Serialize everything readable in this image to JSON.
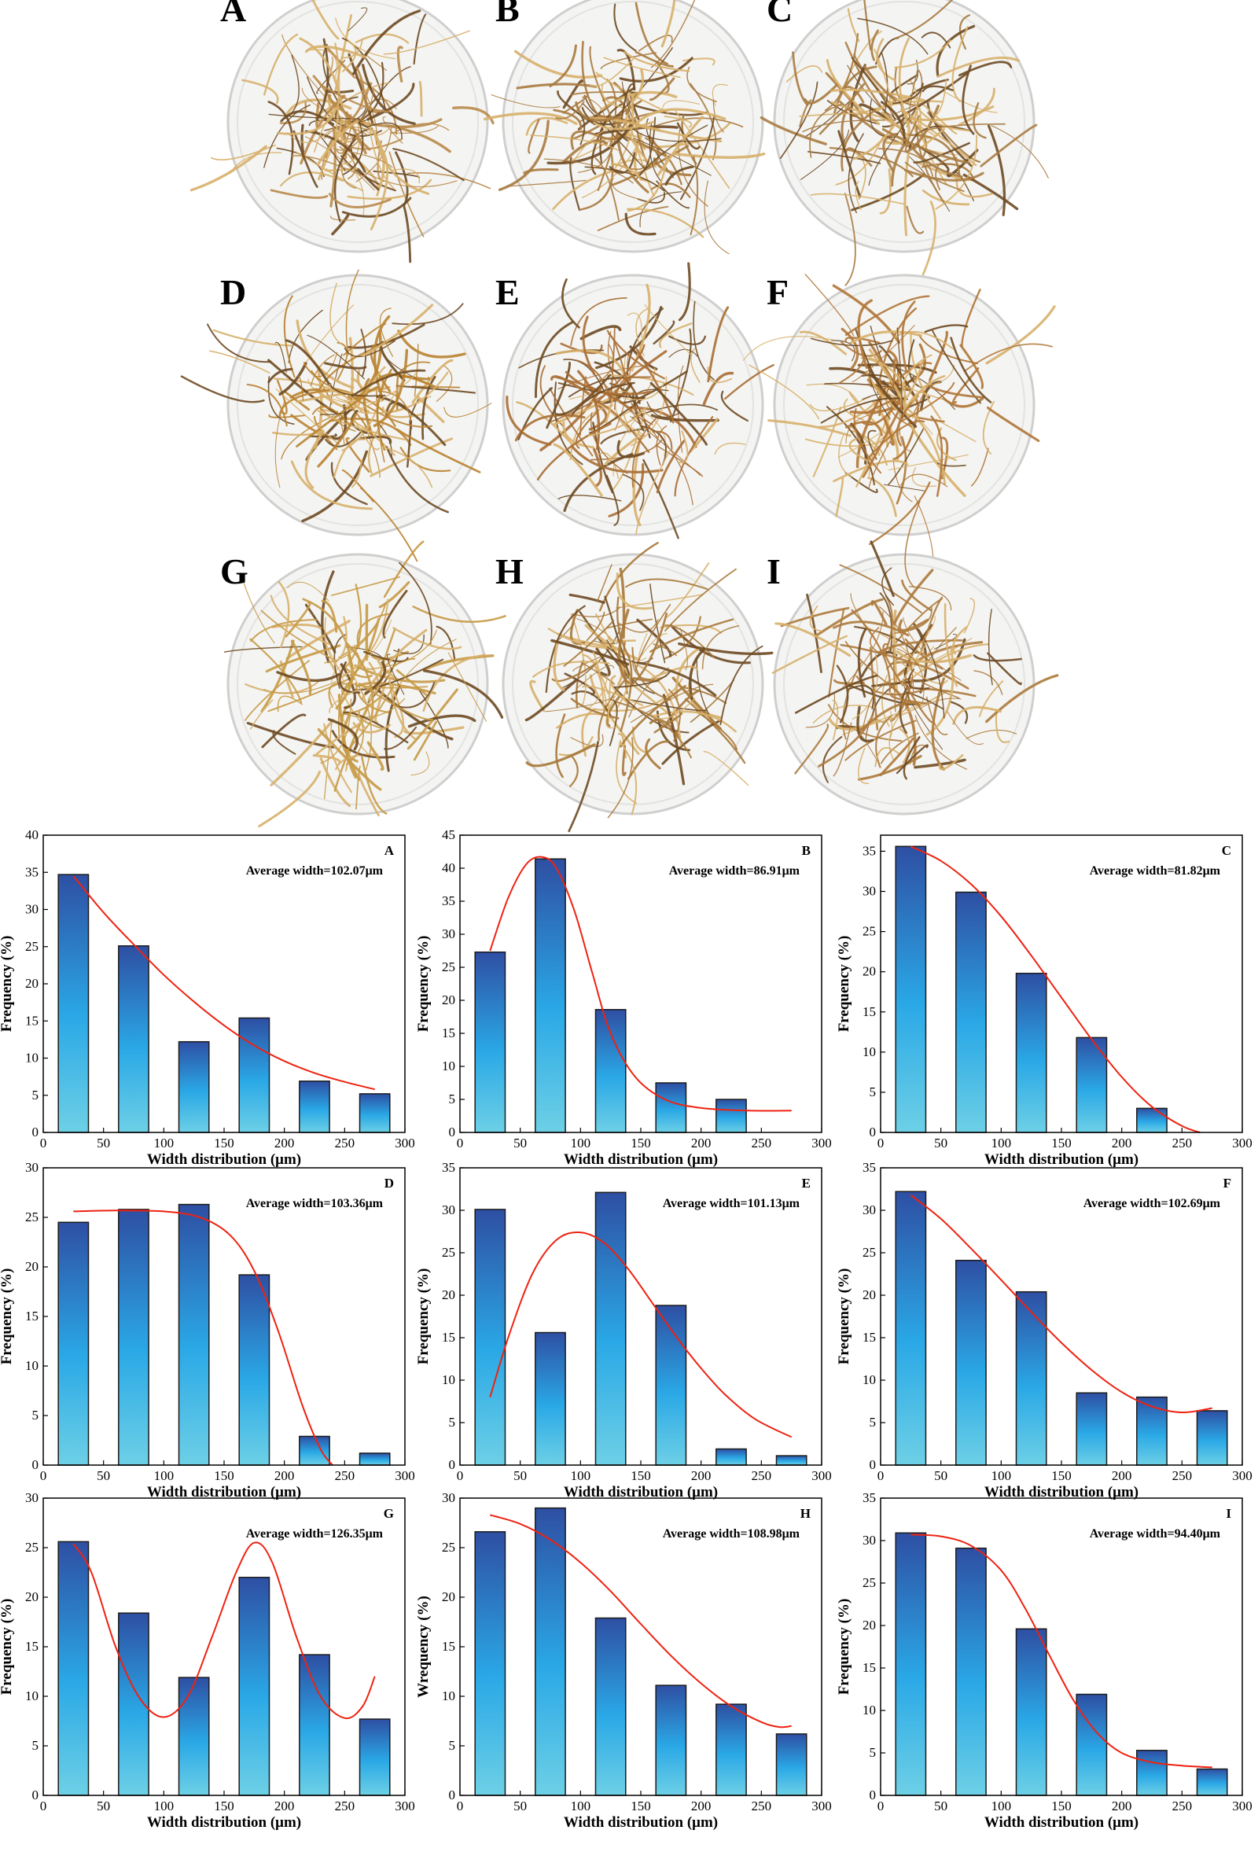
{
  "photos": [
    {
      "label": "A",
      "fiber_color": "#b9894a"
    },
    {
      "label": "B",
      "fiber_color": "#a87a3f"
    },
    {
      "label": "C",
      "fiber_color": "#a97c43"
    },
    {
      "label": "D",
      "fiber_color": "#b98331"
    },
    {
      "label": "E",
      "fiber_color": "#a96e34"
    },
    {
      "label": "F",
      "fiber_color": "#b07636"
    },
    {
      "label": "G",
      "fiber_color": "#c69a46"
    },
    {
      "label": "H",
      "fiber_color": "#a77838"
    },
    {
      "label": "I",
      "fiber_color": "#ad7a3c"
    }
  ],
  "colors": {
    "bar_top": "#2e4fa3",
    "bar_mid": "#2aa8e6",
    "bar_bottom": "#6dd0e6",
    "bar_stroke": "#1b1b1b",
    "fit_line": "#ee2211",
    "dish_rim": "#cfcfcf"
  },
  "chart_data": [
    {
      "panel": "A",
      "type": "bar",
      "annotation": "Average width=102.07μm",
      "x": [
        25,
        75,
        125,
        175,
        225,
        275
      ],
      "values": [
        34.7,
        25.1,
        12.2,
        15.4,
        6.9,
        5.2
      ],
      "fit": [
        [
          25,
          34.5
        ],
        [
          50,
          29.6
        ],
        [
          75,
          25.3
        ],
        [
          100,
          21.2
        ],
        [
          125,
          17.6
        ],
        [
          150,
          14.4
        ],
        [
          175,
          11.7
        ],
        [
          200,
          9.6
        ],
        [
          225,
          8.0
        ],
        [
          250,
          6.8
        ],
        [
          275,
          5.8
        ]
      ],
      "xlabel": "Width distribution (μm)",
      "ylabel": "Frequency (%)",
      "xlim": [
        0,
        300
      ],
      "ylim": [
        0,
        40
      ],
      "xticks": [
        0,
        50,
        100,
        150,
        200,
        250,
        300
      ],
      "yticks": [
        0,
        5,
        10,
        15,
        20,
        25,
        30,
        35,
        40
      ]
    },
    {
      "panel": "B",
      "type": "bar",
      "annotation": "Average width=86.91μm",
      "x": [
        25,
        75,
        125,
        175,
        225
      ],
      "values": [
        27.3,
        41.4,
        18.6,
        7.5,
        5.0
      ],
      "fit": [
        [
          25,
          27.5
        ],
        [
          40,
          35.5
        ],
        [
          55,
          40.6
        ],
        [
          68,
          41.7
        ],
        [
          80,
          40.0
        ],
        [
          95,
          33.5
        ],
        [
          110,
          24.0
        ],
        [
          125,
          15.0
        ],
        [
          145,
          8.5
        ],
        [
          170,
          5.0
        ],
        [
          200,
          3.7
        ],
        [
          240,
          3.3
        ],
        [
          275,
          3.3
        ]
      ],
      "xlabel": "Width distribution (μm)",
      "ylabel": "Frequency (%)",
      "xlim": [
        0,
        300
      ],
      "ylim": [
        0,
        45
      ],
      "xticks": [
        0,
        50,
        100,
        150,
        200,
        250,
        300
      ],
      "yticks": [
        0,
        5,
        10,
        15,
        20,
        25,
        30,
        35,
        40,
        45
      ]
    },
    {
      "panel": "C",
      "type": "bar",
      "annotation": "Average width=81.82μm",
      "x": [
        25,
        75,
        125,
        175,
        225
      ],
      "values": [
        35.6,
        29.9,
        19.8,
        11.8,
        3.0
      ],
      "fit": [
        [
          25,
          35.6
        ],
        [
          50,
          33.8
        ],
        [
          75,
          30.9
        ],
        [
          100,
          26.9
        ],
        [
          125,
          22.0
        ],
        [
          150,
          16.8
        ],
        [
          175,
          11.6
        ],
        [
          200,
          6.9
        ],
        [
          225,
          3.2
        ],
        [
          250,
          0.8
        ],
        [
          265,
          0.0
        ]
      ],
      "xlabel": "Width distribution (μm)",
      "ylabel": "Frequency (%)",
      "xlim": [
        0,
        300
      ],
      "ylim": [
        0,
        37
      ],
      "xticks": [
        0,
        50,
        100,
        150,
        200,
        250,
        300
      ],
      "yticks": [
        0,
        5,
        10,
        15,
        20,
        25,
        30,
        35
      ]
    },
    {
      "panel": "D",
      "type": "bar",
      "annotation": "Average width=103.36μm",
      "x": [
        25,
        75,
        125,
        175,
        225,
        275
      ],
      "values": [
        24.5,
        25.8,
        26.3,
        19.2,
        2.9,
        1.2
      ],
      "fit": [
        [
          25,
          25.6
        ],
        [
          60,
          25.7
        ],
        [
          100,
          25.6
        ],
        [
          130,
          25.0
        ],
        [
          155,
          23.2
        ],
        [
          175,
          19.6
        ],
        [
          195,
          13.5
        ],
        [
          215,
          6.0
        ],
        [
          230,
          1.6
        ],
        [
          240,
          0.0
        ]
      ],
      "xlabel": "Width distribution (μm)",
      "ylabel": "Frequency (%)",
      "xlim": [
        0,
        300
      ],
      "ylim": [
        0,
        30
      ],
      "xticks": [
        0,
        50,
        100,
        150,
        200,
        250,
        300
      ],
      "yticks": [
        0,
        5,
        10,
        15,
        20,
        25,
        30
      ]
    },
    {
      "panel": "E",
      "type": "bar",
      "annotation": "Average width=101.13μm",
      "x": [
        25,
        75,
        125,
        175,
        225,
        275
      ],
      "values": [
        30.1,
        15.6,
        32.1,
        18.8,
        1.9,
        1.1
      ],
      "fit": [
        [
          25,
          8.0
        ],
        [
          40,
          15.0
        ],
        [
          60,
          22.5
        ],
        [
          80,
          26.5
        ],
        [
          100,
          27.4
        ],
        [
          120,
          26.1
        ],
        [
          140,
          23.0
        ],
        [
          160,
          19.0
        ],
        [
          180,
          15.0
        ],
        [
          200,
          11.4
        ],
        [
          220,
          8.3
        ],
        [
          245,
          5.4
        ],
        [
          275,
          3.3
        ]
      ],
      "xlabel": "Width distribution (μm)",
      "ylabel": "Frequency (%)",
      "xlim": [
        0,
        300
      ],
      "ylim": [
        0,
        35
      ],
      "xticks": [
        0,
        50,
        100,
        150,
        200,
        250,
        300
      ],
      "yticks": [
        0,
        5,
        10,
        15,
        20,
        25,
        30,
        35
      ]
    },
    {
      "panel": "F",
      "type": "bar",
      "annotation": "Average width=102.69μm",
      "x": [
        25,
        75,
        125,
        175,
        225,
        275
      ],
      "values": [
        32.2,
        24.1,
        20.4,
        8.5,
        8.0,
        6.4
      ],
      "fit": [
        [
          25,
          31.8
        ],
        [
          50,
          29.0
        ],
        [
          75,
          25.5
        ],
        [
          100,
          21.8
        ],
        [
          125,
          18.0
        ],
        [
          150,
          14.4
        ],
        [
          175,
          11.2
        ],
        [
          200,
          8.6
        ],
        [
          225,
          6.9
        ],
        [
          250,
          6.2
        ],
        [
          275,
          6.7
        ]
      ],
      "xlabel": "Width distribution (μm)",
      "ylabel": "Frequency (%)",
      "xlim": [
        0,
        300
      ],
      "ylim": [
        0,
        35
      ],
      "xticks": [
        0,
        50,
        100,
        150,
        200,
        250,
        300
      ],
      "yticks": [
        0,
        5,
        10,
        15,
        20,
        25,
        30,
        35
      ]
    },
    {
      "panel": "G",
      "type": "bar",
      "annotation": "Average width=126.35μm",
      "x": [
        25,
        75,
        125,
        175,
        225,
        275
      ],
      "values": [
        25.6,
        18.4,
        11.9,
        22.0,
        14.2,
        7.7
      ],
      "fit": [
        [
          25,
          25.4
        ],
        [
          40,
          22.5
        ],
        [
          60,
          15.0
        ],
        [
          80,
          9.8
        ],
        [
          100,
          7.9
        ],
        [
          120,
          10.0
        ],
        [
          140,
          16.0
        ],
        [
          160,
          22.5
        ],
        [
          175,
          25.5
        ],
        [
          190,
          23.5
        ],
        [
          210,
          16.0
        ],
        [
          230,
          10.0
        ],
        [
          250,
          7.8
        ],
        [
          265,
          9.0
        ],
        [
          275,
          12.0
        ]
      ],
      "xlabel": "Width distribution (μm)",
      "ylabel": "Frequency (%)",
      "xlim": [
        0,
        300
      ],
      "ylim": [
        0,
        30
      ],
      "xticks": [
        0,
        50,
        100,
        150,
        200,
        250,
        300
      ],
      "yticks": [
        0,
        5,
        10,
        15,
        20,
        25,
        30
      ]
    },
    {
      "panel": "H",
      "type": "bar",
      "annotation": "Average width=108.98μm",
      "x": [
        25,
        75,
        125,
        175,
        225,
        275
      ],
      "values": [
        26.6,
        29.0,
        17.9,
        11.1,
        9.2,
        6.2
      ],
      "fit": [
        [
          25,
          28.3
        ],
        [
          50,
          27.4
        ],
        [
          75,
          25.8
        ],
        [
          100,
          23.5
        ],
        [
          125,
          20.6
        ],
        [
          150,
          17.3
        ],
        [
          175,
          14.1
        ],
        [
          200,
          11.3
        ],
        [
          225,
          9.0
        ],
        [
          250,
          7.4
        ],
        [
          265,
          6.9
        ],
        [
          275,
          7.0
        ]
      ],
      "xlabel": "Width distribution (μm)",
      "ylabel": "Wrequency (%)",
      "xlim": [
        0,
        300
      ],
      "ylim": [
        0,
        30
      ],
      "xticks": [
        0,
        50,
        100,
        150,
        200,
        250,
        300
      ],
      "yticks": [
        0,
        5,
        10,
        15,
        20,
        25,
        30
      ]
    },
    {
      "panel": "I",
      "type": "bar",
      "annotation": "Average width=94.40μm",
      "x": [
        25,
        75,
        125,
        175,
        225,
        275
      ],
      "values": [
        30.9,
        29.1,
        19.6,
        11.9,
        5.3,
        3.1
      ],
      "fit": [
        [
          25,
          30.7
        ],
        [
          50,
          30.5
        ],
        [
          75,
          29.4
        ],
        [
          100,
          26.5
        ],
        [
          120,
          22.0
        ],
        [
          140,
          16.5
        ],
        [
          160,
          11.2
        ],
        [
          180,
          7.3
        ],
        [
          200,
          5.0
        ],
        [
          225,
          3.9
        ],
        [
          250,
          3.5
        ],
        [
          275,
          3.3
        ]
      ],
      "xlabel": "Width distribution (μm)",
      "ylabel": "Frequency (%)",
      "xlim": [
        0,
        300
      ],
      "ylim": [
        0,
        35
      ],
      "xticks": [
        0,
        50,
        100,
        150,
        200,
        250,
        300
      ],
      "yticks": [
        0,
        5,
        10,
        15,
        20,
        25,
        30,
        35
      ]
    }
  ]
}
